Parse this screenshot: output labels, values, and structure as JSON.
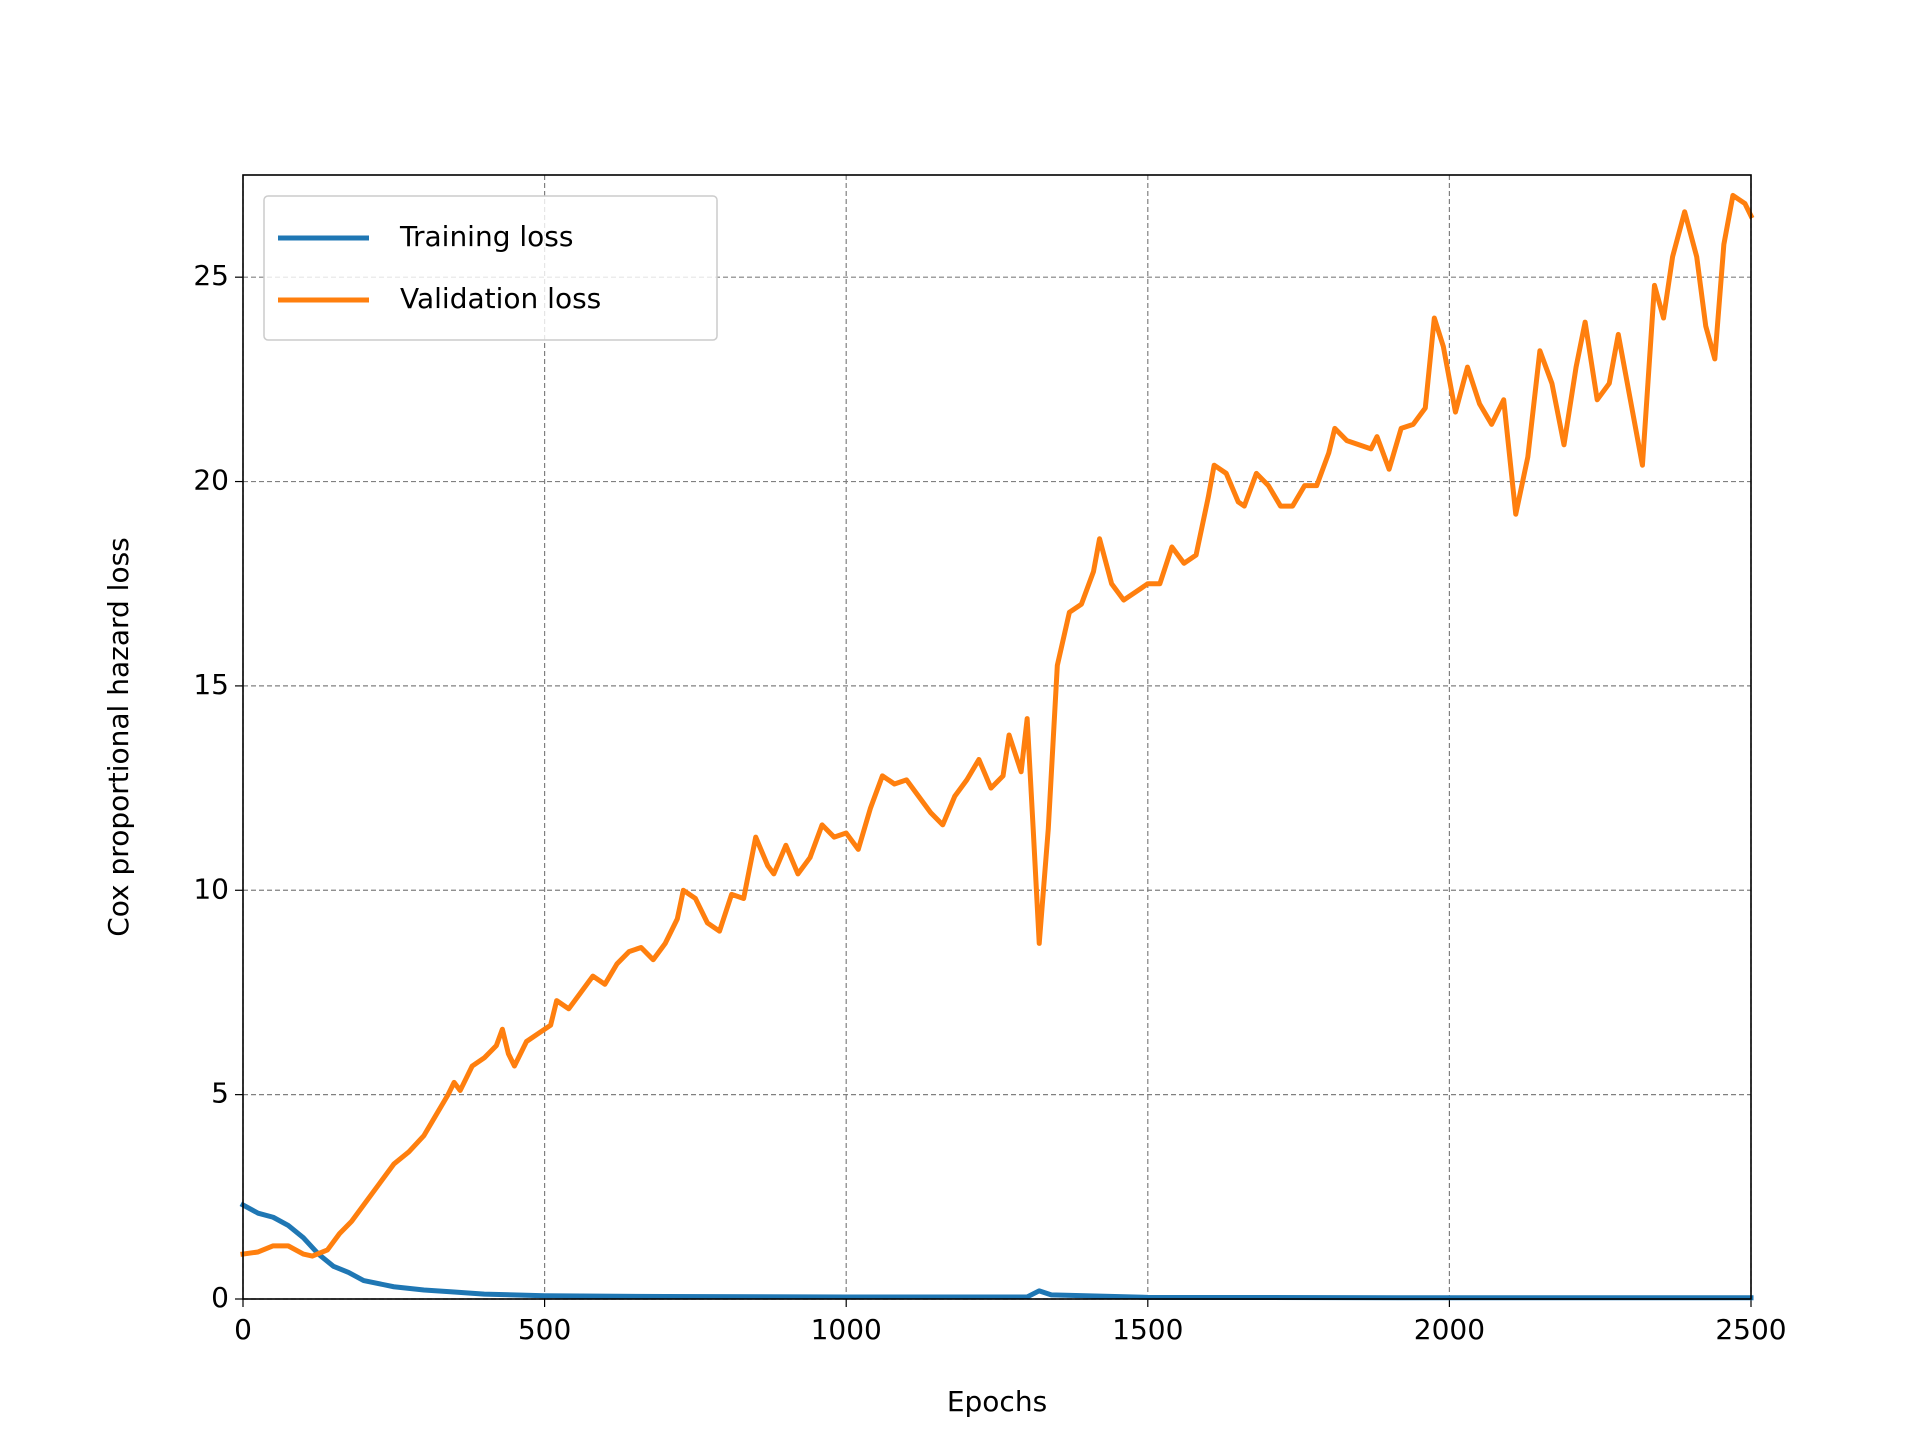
{
  "chart_data": {
    "type": "line",
    "xlabel": "Epochs",
    "ylabel": "Cox proportional hazard loss",
    "xlim": [
      0,
      2500
    ],
    "xticks": [
      0,
      500,
      1000,
      1500,
      2000,
      2500
    ],
    "ylim": [
      0,
      27.5
    ],
    "yticks": [
      0,
      5,
      10,
      15,
      20,
      25
    ],
    "grid": true,
    "legend": "upper left",
    "series": [
      {
        "name": "Training loss",
        "color": "#1f77b4",
        "x": [
          0,
          25,
          50,
          75,
          100,
          125,
          150,
          175,
          200,
          250,
          300,
          350,
          400,
          500,
          700,
          1000,
          1300,
          1320,
          1340,
          1500,
          2000,
          2500
        ],
        "values": [
          2.3,
          2.1,
          2.0,
          1.8,
          1.5,
          1.1,
          0.8,
          0.65,
          0.45,
          0.3,
          0.22,
          0.17,
          0.12,
          0.08,
          0.06,
          0.05,
          0.05,
          0.2,
          0.1,
          0.04,
          0.03,
          0.03
        ]
      },
      {
        "name": "Validation loss",
        "color": "#ff7f0e",
        "x": [
          0,
          25,
          50,
          75,
          100,
          115,
          140,
          160,
          180,
          200,
          225,
          250,
          275,
          300,
          320,
          340,
          350,
          360,
          380,
          400,
          420,
          430,
          440,
          450,
          470,
          490,
          510,
          520,
          540,
          560,
          580,
          600,
          620,
          640,
          660,
          680,
          700,
          720,
          730,
          750,
          770,
          790,
          810,
          830,
          850,
          870,
          880,
          900,
          920,
          940,
          960,
          980,
          1000,
          1020,
          1040,
          1060,
          1080,
          1100,
          1120,
          1140,
          1160,
          1180,
          1200,
          1220,
          1240,
          1260,
          1270,
          1290,
          1300,
          1310,
          1320,
          1335,
          1350,
          1370,
          1390,
          1410,
          1420,
          1440,
          1460,
          1480,
          1500,
          1520,
          1540,
          1560,
          1580,
          1600,
          1610,
          1630,
          1650,
          1660,
          1680,
          1700,
          1720,
          1740,
          1760,
          1780,
          1800,
          1810,
          1830,
          1850,
          1870,
          1880,
          1900,
          1920,
          1940,
          1960,
          1975,
          1990,
          2010,
          2030,
          2050,
          2070,
          2090,
          2110,
          2130,
          2150,
          2170,
          2190,
          2210,
          2225,
          2245,
          2265,
          2280,
          2300,
          2320,
          2340,
          2355,
          2370,
          2390,
          2410,
          2425,
          2440,
          2455,
          2470,
          2490,
          2500
        ],
        "values": [
          1.1,
          1.15,
          1.3,
          1.3,
          1.1,
          1.05,
          1.2,
          1.6,
          1.9,
          2.3,
          2.8,
          3.3,
          3.6,
          4.0,
          4.5,
          5.0,
          5.3,
          5.1,
          5.7,
          5.9,
          6.2,
          6.6,
          6.0,
          5.7,
          6.3,
          6.5,
          6.7,
          7.3,
          7.1,
          7.5,
          7.9,
          7.7,
          8.2,
          8.5,
          8.6,
          8.3,
          8.7,
          9.3,
          10.0,
          9.8,
          9.2,
          9.0,
          9.9,
          9.8,
          11.3,
          10.6,
          10.4,
          11.1,
          10.4,
          10.8,
          11.6,
          11.3,
          11.4,
          11.0,
          12.0,
          12.8,
          12.6,
          12.7,
          12.3,
          11.9,
          11.6,
          12.3,
          12.7,
          13.2,
          12.5,
          12.8,
          13.8,
          12.9,
          14.2,
          11.5,
          8.7,
          11.5,
          15.5,
          16.8,
          17.0,
          17.8,
          18.6,
          17.5,
          17.1,
          17.3,
          17.5,
          17.5,
          18.4,
          18.0,
          18.2,
          19.6,
          20.4,
          20.2,
          19.5,
          19.4,
          20.2,
          19.9,
          19.4,
          19.4,
          19.9,
          19.9,
          20.7,
          21.3,
          21.0,
          20.9,
          20.8,
          21.1,
          20.3,
          21.3,
          21.4,
          21.8,
          24.0,
          23.3,
          21.7,
          22.8,
          21.9,
          21.4,
          22.0,
          19.2,
          20.6,
          23.2,
          22.4,
          20.9,
          22.8,
          23.9,
          22.0,
          22.4,
          23.6,
          22.0,
          20.4,
          24.8,
          24.0,
          25.5,
          26.6,
          25.5,
          23.8,
          23.0,
          25.8,
          27.0,
          26.8,
          26.5
        ]
      }
    ]
  }
}
